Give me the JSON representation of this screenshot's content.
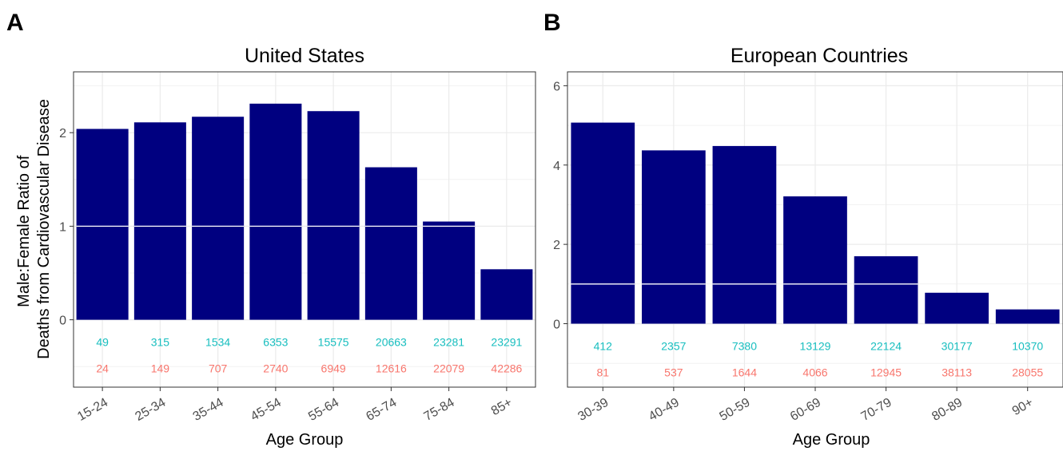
{
  "colors": {
    "bar": "#000080",
    "male_count": "#17bebf",
    "female_count": "#f8766d",
    "reference_line": "#ffffff",
    "grid": "#ebebeb",
    "panel_border": "#333333"
  },
  "chart_data": [
    {
      "type": "bar",
      "panel_label": "A",
      "title": "United States",
      "xlabel": "Age Group",
      "ylabel": [
        "Male:Female Ratio of",
        "Deaths from Cardiovascular Disease"
      ],
      "categories": [
        "15-24",
        "25-34",
        "35-44",
        "45-54",
        "55-64",
        "65-74",
        "75-84",
        "85+"
      ],
      "values": [
        2.04,
        2.11,
        2.17,
        2.31,
        2.23,
        1.63,
        1.05,
        0.54
      ],
      "male_counts": [
        "49",
        "315",
        "1534",
        "6353",
        "15575",
        "20663",
        "23281",
        "23291"
      ],
      "female_counts": [
        "24",
        "149",
        "707",
        "2740",
        "6949",
        "12616",
        "22079",
        "42286"
      ],
      "reference_line": 1,
      "ylim": [
        -0.72,
        2.65
      ],
      "yticks": [
        0,
        1,
        2
      ],
      "grid": true
    },
    {
      "type": "bar",
      "panel_label": "B",
      "title": "European Countries",
      "xlabel": "Age Group",
      "ylabel": [],
      "categories": [
        "30-39",
        "40-49",
        "50-59",
        "60-69",
        "70-79",
        "80-89",
        "90+"
      ],
      "values": [
        5.07,
        4.37,
        4.48,
        3.21,
        1.7,
        0.78,
        0.36
      ],
      "male_counts": [
        "412",
        "2357",
        "7380",
        "13129",
        "22124",
        "30177",
        "10370"
      ],
      "female_counts": [
        "81",
        "537",
        "1644",
        "4066",
        "12945",
        "38113",
        "28055"
      ],
      "reference_line": 1,
      "ylim": [
        -1.6,
        6.35
      ],
      "yticks": [
        0,
        2,
        4,
        6
      ],
      "grid": true
    }
  ]
}
